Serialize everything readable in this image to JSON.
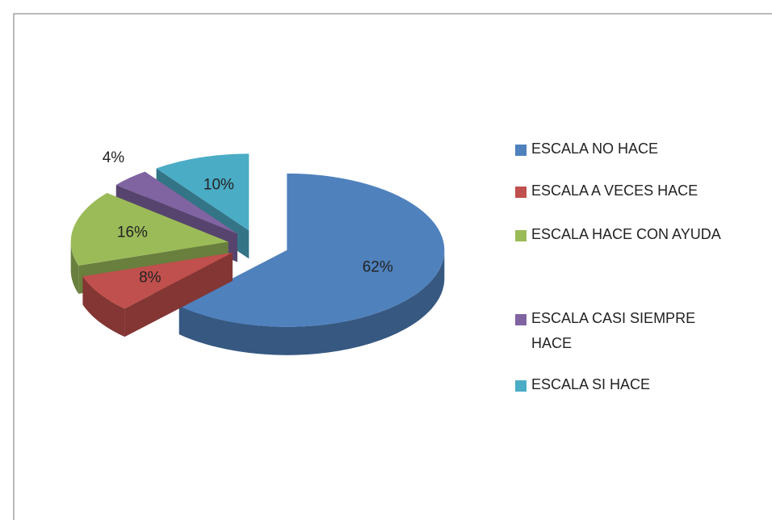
{
  "chart_data": {
    "type": "pie",
    "categories": [
      "ESCALA NO HACE",
      "ESCALA A VECES HACE",
      "ESCALA HACE CON AYUDA",
      "ESCALA CASI SIEMPRE HACE",
      "ESCALA SI HACE"
    ],
    "values": [
      62,
      8,
      16,
      4,
      10
    ],
    "value_labels": [
      "62%",
      "8%",
      "16%",
      "4%",
      "10%"
    ],
    "colors": [
      "#4f81bd",
      "#c0504d",
      "#9bbb59",
      "#8064a2",
      "#4bacc6"
    ],
    "legend": "right"
  }
}
